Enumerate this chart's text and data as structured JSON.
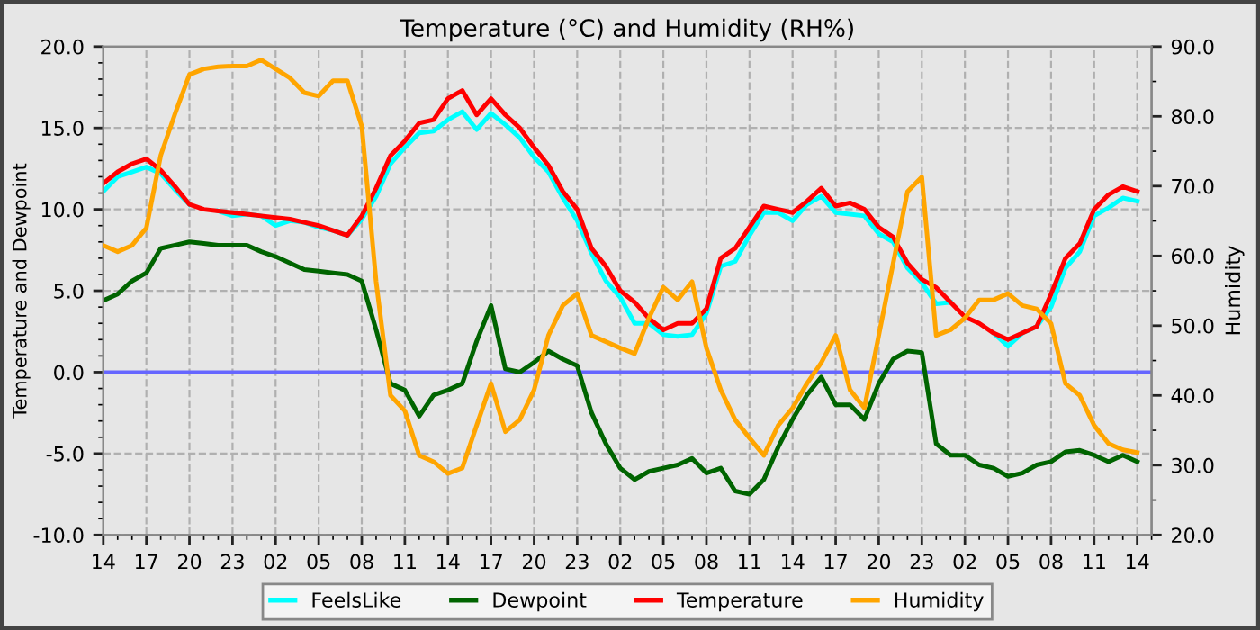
{
  "chart_data": {
    "type": "line",
    "title": "Temperature (°C) and Humidity (RH%)",
    "ylabel": "Temperature and Dewpoint",
    "y2label": "Humidity",
    "categories": [
      "14",
      null,
      null,
      "17",
      null,
      null,
      "20",
      null,
      null,
      "23",
      null,
      null,
      "02",
      null,
      null,
      "05",
      null,
      null,
      "08",
      null,
      null,
      "11",
      null,
      null,
      "14",
      null,
      null,
      "17",
      null,
      null,
      "20",
      null,
      null,
      "23",
      null,
      null,
      "02",
      null,
      null,
      "05",
      null,
      null,
      "08",
      null,
      null,
      "11",
      null,
      null,
      "14",
      null,
      null,
      "17",
      null,
      null,
      "20",
      null,
      null,
      "23",
      null,
      null,
      "02",
      null,
      null,
      "05",
      null,
      null,
      "08",
      null,
      null,
      "11",
      null,
      null,
      "14"
    ],
    "series": [
      {
        "name": "FeelsLike",
        "color": "#00ffff",
        "values": [
          11.1,
          12.0,
          12.3,
          12.6,
          12.2,
          11.2,
          10.3,
          null,
          9.9,
          9.6,
          9.7,
          9.6,
          9.0,
          9.3,
          9.2,
          8.9,
          8.7,
          8.4,
          9.4,
          10.8,
          12.8,
          13.8,
          14.7,
          14.8,
          15.5,
          16.0,
          14.9,
          15.9,
          15.2,
          14.4,
          13.2,
          12.3,
          10.7,
          9.3,
          7.3,
          5.6,
          4.6,
          3.0,
          3.0,
          2.3,
          2.2,
          2.3,
          3.6,
          6.5,
          6.8,
          8.4,
          9.8,
          9.8,
          9.3,
          10.3,
          10.8,
          9.8,
          9.7,
          9.6,
          8.5,
          8.0,
          6.4,
          5.5,
          4.2,
          4.3,
          null,
          null,
          2.4,
          1.6,
          2.4,
          2.8,
          4.0,
          6.4,
          7.4,
          9.6,
          10.1,
          10.7,
          10.5
        ]
      },
      {
        "name": "Dewpoint",
        "color": "#006400",
        "values": [
          4.4,
          4.8,
          5.6,
          6.1,
          7.6,
          7.8,
          8.0,
          7.9,
          7.8,
          7.8,
          7.8,
          7.4,
          7.1,
          6.7,
          6.3,
          6.2,
          6.1,
          6.0,
          5.6,
          2.6,
          -0.7,
          -1.1,
          -2.7,
          -1.4,
          -1.1,
          -0.7,
          1.9,
          4.1,
          0.2,
          0.0,
          0.6,
          1.3,
          0.8,
          0.4,
          -2.5,
          -4.4,
          -5.9,
          -6.6,
          -6.1,
          -5.9,
          -5.7,
          -5.3,
          -6.2,
          -5.9,
          -7.3,
          -7.5,
          -6.6,
          -4.6,
          -2.9,
          -1.4,
          -0.3,
          -2.0,
          -2.0,
          -2.9,
          -0.7,
          0.8,
          1.3,
          1.2,
          -4.4,
          -5.1,
          -5.1,
          -5.7,
          -5.9,
          -6.4,
          -6.2,
          -5.7,
          -5.5,
          -4.9,
          -4.8,
          -5.1,
          -5.5,
          -5.1,
          -5.5
        ]
      },
      {
        "name": "Temperature",
        "color": "#ff0000",
        "values": [
          11.6,
          12.3,
          12.8,
          13.1,
          12.4,
          11.4,
          10.3,
          10.0,
          9.9,
          9.8,
          9.7,
          9.6,
          9.5,
          9.4,
          9.2,
          9.0,
          8.7,
          8.4,
          9.6,
          11.3,
          13.3,
          14.2,
          15.3,
          15.5,
          16.8,
          17.3,
          15.8,
          16.8,
          15.8,
          15.0,
          13.8,
          12.7,
          11.1,
          10.0,
          7.6,
          6.5,
          5.0,
          4.3,
          3.3,
          2.6,
          3.0,
          3.0,
          3.9,
          7.0,
          7.6,
          8.9,
          10.2,
          10.0,
          9.8,
          10.5,
          11.3,
          10.2,
          10.4,
          10.0,
          8.9,
          8.3,
          6.7,
          5.7,
          5.2,
          4.3,
          3.4,
          3.0,
          2.4,
          2.0,
          2.4,
          2.8,
          4.8,
          7.0,
          7.9,
          10.0,
          10.9,
          11.4,
          11.1
        ]
      },
      {
        "name": "Humidity",
        "color": "#ffa500",
        "axis": "y2",
        "values": [
          61.5,
          60.6,
          61.5,
          64.0,
          74.4,
          80.4,
          86.0,
          86.8,
          87.1,
          87.2,
          87.2,
          88.1,
          86.8,
          85.5,
          83.4,
          82.9,
          85.1,
          85.1,
          78.6,
          56.3,
          40.0,
          37.8,
          31.4,
          30.5,
          28.8,
          29.6,
          35.7,
          41.7,
          34.8,
          36.5,
          40.8,
          48.6,
          52.9,
          54.6,
          48.6,
          47.7,
          46.8,
          46.0,
          51.1,
          55.5,
          53.7,
          56.3,
          46.8,
          40.8,
          36.5,
          33.9,
          31.4,
          35.7,
          38.2,
          41.7,
          44.7,
          48.6,
          40.8,
          38.2,
          48.6,
          58.9,
          69.2,
          71.3,
          48.6,
          49.4,
          51.1,
          53.7,
          53.7,
          54.6,
          52.9,
          52.4,
          50.3,
          41.7,
          40.0,
          35.7,
          33.1,
          32.2,
          31.8
        ]
      }
    ],
    "ylim": [
      -10,
      20
    ],
    "yticks": [
      {
        "value": -10,
        "label": "-10.0"
      },
      {
        "value": -5,
        "label": "-5.0"
      },
      {
        "value": 0,
        "label": "0.0"
      },
      {
        "value": 5,
        "label": "5.0"
      },
      {
        "value": 10,
        "label": "10.0"
      },
      {
        "value": 15,
        "label": "15.0"
      },
      {
        "value": 20,
        "label": "20.0"
      }
    ],
    "y2lim": [
      20,
      90
    ],
    "y2ticks": [
      {
        "value": 20,
        "label": "20.0"
      },
      {
        "value": 30,
        "label": "30.0"
      },
      {
        "value": 40,
        "label": "40.0"
      },
      {
        "value": 50,
        "label": "50.0"
      },
      {
        "value": 60,
        "label": "60.0"
      },
      {
        "value": 70,
        "label": "70.0"
      },
      {
        "value": 80,
        "label": "80.0"
      },
      {
        "value": 90,
        "label": "90.0"
      }
    ],
    "ref_lines": [
      {
        "axis": "y",
        "value": 0,
        "color": "#6666ff"
      }
    ],
    "grid": true,
    "legend": "bottom",
    "marker": "none",
    "line_style": "solid"
  }
}
